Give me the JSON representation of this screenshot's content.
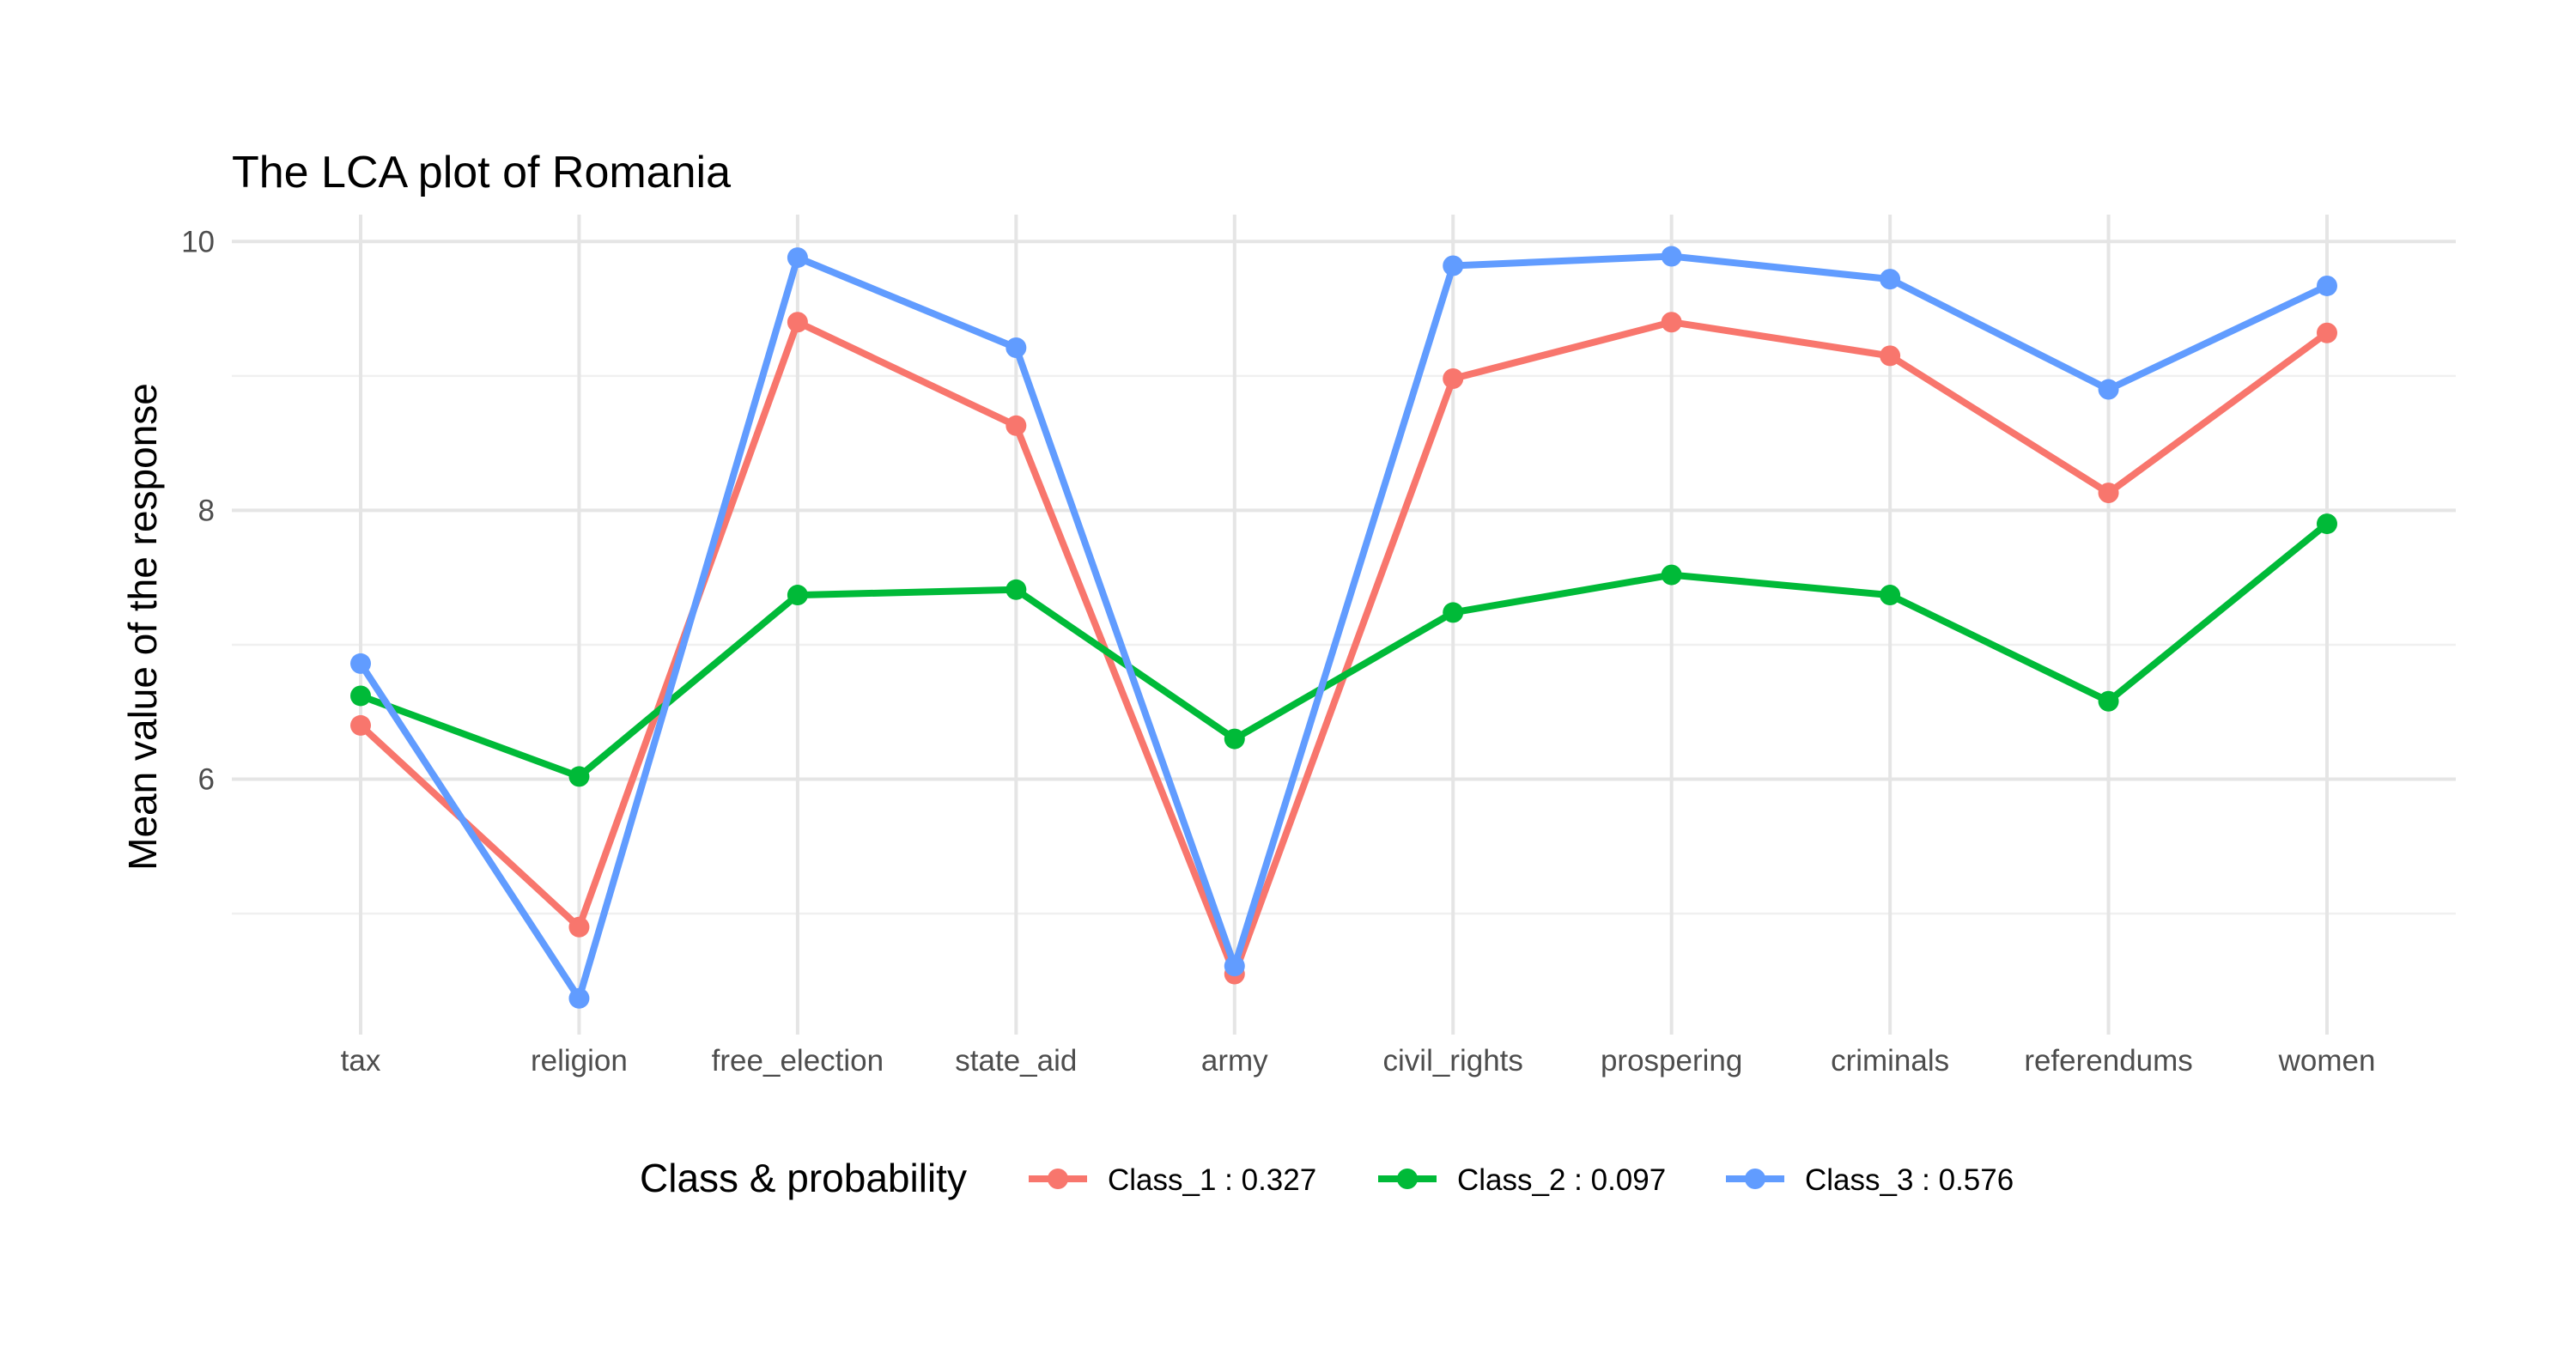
{
  "chart_data": {
    "type": "line",
    "title": "The LCA plot of Romania",
    "xlabel": "",
    "ylabel": "Mean value of the response",
    "categories": [
      "tax",
      "religion",
      "free_election",
      "state_aid",
      "army",
      "civil_rights",
      "prospering",
      "criminals",
      "referendums",
      "women"
    ],
    "ylim": [
      4.1,
      10.2
    ],
    "yticks": [
      6,
      8,
      10
    ],
    "yminor": [
      5,
      7,
      9
    ],
    "grid": true,
    "legend": {
      "title": "Class & probability",
      "position": "bottom"
    },
    "series": [
      {
        "name": "Class_1 : 0.327",
        "color": "#F8766D",
        "values": [
          6.4,
          4.9,
          9.4,
          8.63,
          4.55,
          8.98,
          9.4,
          9.15,
          8.13,
          9.32
        ]
      },
      {
        "name": "Class_2 : 0.097",
        "color": "#00BA38",
        "values": [
          6.62,
          6.02,
          7.37,
          7.41,
          6.3,
          7.24,
          7.52,
          7.37,
          6.58,
          7.9
        ]
      },
      {
        "name": "Class_3 : 0.576",
        "color": "#619CFF",
        "values": [
          6.86,
          4.37,
          9.88,
          9.21,
          4.61,
          9.82,
          9.89,
          9.72,
          8.9,
          9.67
        ]
      }
    ]
  }
}
